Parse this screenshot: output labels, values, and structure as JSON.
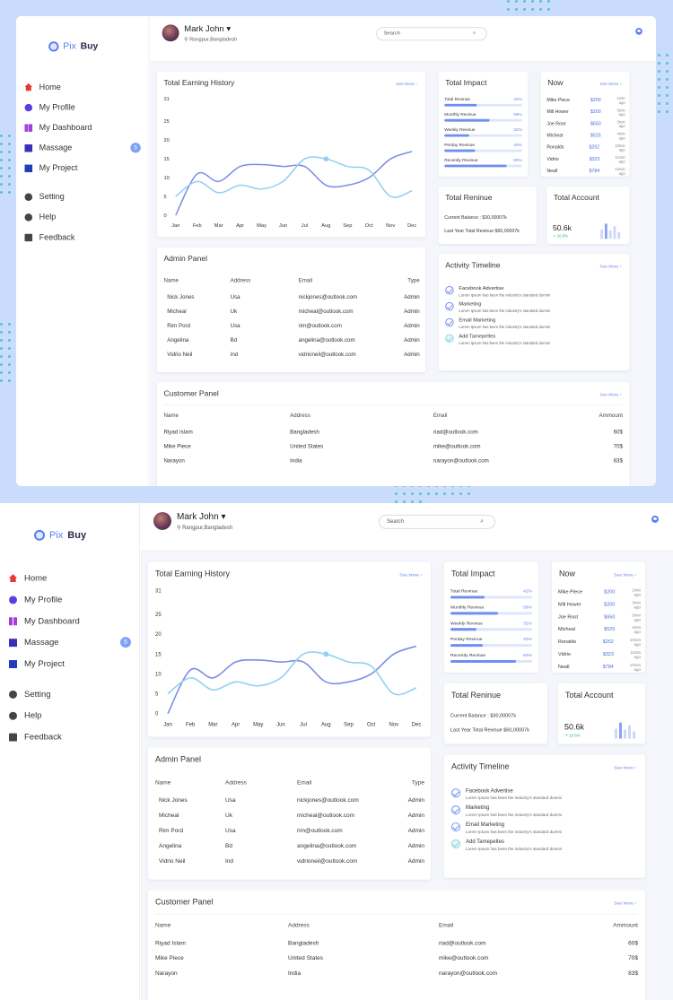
{
  "brand": {
    "pix": "Pix",
    "buy": "Buy"
  },
  "user": {
    "name": "Mark John",
    "caret": "▾",
    "location": "Rangpur,Bangladesh"
  },
  "search": {
    "placeholder": "Search"
  },
  "sidebar": {
    "items": [
      {
        "label": "Home",
        "icon": "home-icon",
        "color": "#e53935"
      },
      {
        "label": "My Profile",
        "icon": "profile-icon",
        "color": "#5b3de0"
      },
      {
        "label": "My Dashboard",
        "icon": "dashboard-icon",
        "color": "#a63fd9"
      },
      {
        "label": "Massage",
        "icon": "mail-icon",
        "color": "#3b2fb8",
        "badge": "5"
      },
      {
        "label": "My Project",
        "icon": "book-icon",
        "color": "#1f3fb8"
      },
      {
        "label": "Setting",
        "icon": "gear-icon",
        "color": "#444"
      },
      {
        "label": "Help",
        "icon": "help-icon",
        "color": "#444"
      },
      {
        "label": "Feedback",
        "icon": "feedback-icon",
        "color": "#444"
      }
    ]
  },
  "earning": {
    "title": "Total Earning History",
    "see_more": "See More ›",
    "chart_data": {
      "type": "line",
      "categories": [
        "Jan",
        "Feb",
        "Mar",
        "Apr",
        "May",
        "Jun",
        "Jul",
        "Aug",
        "Sep",
        "Oct",
        "Nov",
        "Dec"
      ],
      "yticks": [
        0,
        5,
        10,
        15,
        20,
        25,
        31
      ],
      "ylim": [
        0,
        31
      ],
      "series": [
        {
          "values": [
            0,
            11,
            9,
            13,
            13.5,
            13,
            13,
            8,
            8,
            10,
            15,
            17
          ],
          "color": "#7b8de6"
        },
        {
          "values": [
            5,
            9,
            6,
            8,
            7,
            9,
            15,
            15,
            13,
            12,
            5,
            6.5
          ],
          "color": "#8fd0f2"
        }
      ]
    }
  },
  "impact": {
    "title": "Total Impact",
    "rows": [
      {
        "label": "Total Revinue",
        "pct": "42%",
        "value": 0.42
      },
      {
        "label": "Monthly Revinue",
        "pct": "58%",
        "value": 0.58
      },
      {
        "label": "Weekly Revinue",
        "pct": "32%",
        "value": 0.32
      },
      {
        "label": "Perday Revinue",
        "pct": "40%",
        "value": 0.4
      },
      {
        "label": "Recently Revinue",
        "pct": "80%",
        "value": 0.8
      }
    ]
  },
  "now": {
    "title": "Now",
    "see_more": "See More ›",
    "rows": [
      {
        "name": "Mike Piece",
        "amount": "$200",
        "time": "1min ago"
      },
      {
        "name": "Mill Hower",
        "amount": "$200",
        "time": "3min ago"
      },
      {
        "name": "Joe Root",
        "amount": "$650",
        "time": "3min ago"
      },
      {
        "name": "Micheal",
        "amount": "$525",
        "time": "4min ago"
      },
      {
        "name": "Ronalds",
        "amount": "$252",
        "time": "10min ago"
      },
      {
        "name": "Vidrio",
        "amount": "$323",
        "time": "11min ago"
      },
      {
        "name": "Neall",
        "amount": "$784",
        "time": "12min ago"
      }
    ]
  },
  "reninue": {
    "title": "Total Reninue",
    "current": "Current Balance : $30,00007k",
    "last_year": "Last Year Total Revinue $60,00007k"
  },
  "account": {
    "title": "Total Account",
    "value": "50.6k",
    "change": "↗ 10.8%",
    "bars": [
      0.5,
      0.8,
      0.45,
      0.7,
      0.35
    ]
  },
  "admin": {
    "title": "Admin Panel",
    "columns": [
      "Name",
      "Address",
      "Email",
      "Type"
    ],
    "rows": [
      [
        "Nick Jones",
        "Usa",
        "nickjones@outlook.com",
        "Admin"
      ],
      [
        "Micheal",
        "Uk",
        "micheal@outlook.com",
        "Admin"
      ],
      [
        "Rim Pord",
        "Usa",
        "rim@outlook.com",
        "Admin"
      ],
      [
        "Angelina",
        "Bd",
        "angelina@outlook.com",
        "Admin"
      ],
      [
        "Vidrio Neil",
        "Ind",
        "vidrioneil@outlook.com",
        "Admin"
      ]
    ]
  },
  "timeline": {
    "title": "Activity Timeline",
    "see_more": "See More ›",
    "items": [
      {
        "title": "Facebook Advertise",
        "desc": "Lorem Ipsum has been the industry's standard dummi"
      },
      {
        "title": "Marketing",
        "desc": "Lorem Ipsum has been the industry's standard dummi"
      },
      {
        "title": "Email  Marketing",
        "desc": "Lorem Ipsum has been the industry's standard dummi"
      },
      {
        "title": "Add Tamepeltes",
        "desc": "Lorem Ipsum has been the industry's standard dummi"
      }
    ]
  },
  "customer": {
    "title": "Customer Panel",
    "see_more": "See More ›",
    "columns": [
      "Name",
      "Address",
      "Email",
      "Ammount"
    ],
    "rows": [
      [
        "Riyad Islam",
        "Bangladesh",
        "riad@outlook.com",
        "60$"
      ],
      [
        "Mike Piece",
        "United States",
        "mike@outlook.com",
        "70$"
      ],
      [
        "Narayon",
        "India",
        "narayon@outlook.com",
        "83$"
      ]
    ]
  }
}
